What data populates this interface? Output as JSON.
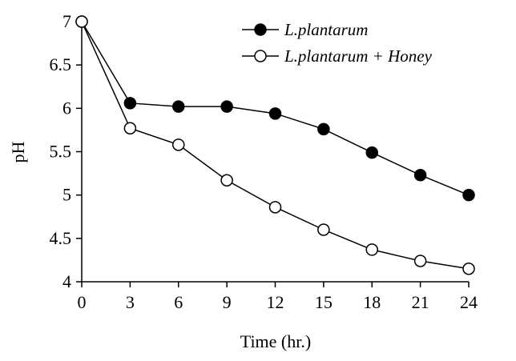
{
  "chart_data": {
    "type": "line",
    "title": "",
    "xlabel": "Time (hr.)",
    "ylabel": "pH",
    "x": [
      0,
      3,
      6,
      9,
      12,
      15,
      18,
      21,
      24
    ],
    "x_ticks": [
      0,
      3,
      6,
      9,
      12,
      15,
      18,
      21,
      24
    ],
    "y_ticks": [
      4,
      4.5,
      5,
      5.5,
      6,
      6.5,
      7
    ],
    "xlim": [
      0,
      24
    ],
    "ylim": [
      4,
      7
    ],
    "grid": false,
    "legend_position": "top-right-inside",
    "series": [
      {
        "name": "L.plantarum",
        "marker": "filled-circle",
        "marker_fill": "#000000",
        "values": [
          7.0,
          6.06,
          6.02,
          6.02,
          5.94,
          5.76,
          5.49,
          5.23,
          5.0
        ]
      },
      {
        "name": "L.plantarum + Honey",
        "marker": "open-circle",
        "marker_fill": "#ffffff",
        "values": [
          7.0,
          5.77,
          5.58,
          5.17,
          4.86,
          4.6,
          4.37,
          4.24,
          4.15
        ]
      }
    ],
    "colors": {
      "line": "#000000",
      "background": "#ffffff"
    }
  }
}
